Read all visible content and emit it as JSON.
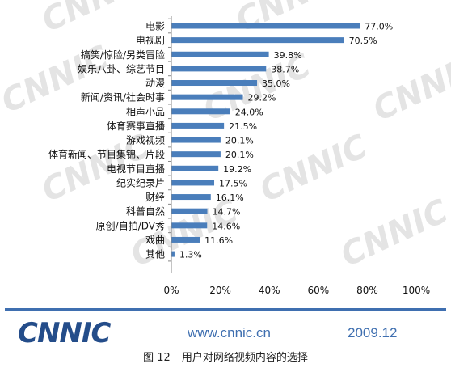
{
  "chart_data": {
    "type": "bar",
    "orientation": "horizontal",
    "categories": [
      "电影",
      "电视剧",
      "搞笑/惊险/另类冒险",
      "娱乐八卦、综艺节目",
      "动漫",
      "新闻/资讯/社会时事",
      "相声小品",
      "体育赛事直播",
      "游戏视频",
      "体育新闻、节目集锦、片段",
      "电视节目直播",
      "纪实纪录片",
      "财经",
      "科普自然",
      "原创/自拍/DV秀",
      "戏曲",
      "其他"
    ],
    "values": [
      77.0,
      70.5,
      39.8,
      38.7,
      35.0,
      29.2,
      24.0,
      21.5,
      20.1,
      20.1,
      19.2,
      17.5,
      16.1,
      14.7,
      14.6,
      11.6,
      1.3
    ],
    "value_labels": [
      "77.0%",
      "70.5%",
      "39.8%",
      "38.7%",
      "35.0%",
      "29.2%",
      "24.0%",
      "21.5%",
      "20.1%",
      "20.1%",
      "19.2%",
      "17.5%",
      "16.1%",
      "14.7%",
      "14.6%",
      "11.6%",
      "1.3%"
    ],
    "x_ticks": [
      "0%",
      "20%",
      "40%",
      "60%",
      "80%",
      "100%"
    ],
    "xlim": [
      0,
      100
    ],
    "grid": false,
    "legend": "none",
    "bar_color": "#4a7ebb",
    "watermark_text": "CNNIC"
  },
  "footer": {
    "logo_text": "CNNIC",
    "url": "www.cnnic.cn",
    "period": "2009.12",
    "figure_number": "图 12",
    "figure_title": "用户对网络视频内容的选择"
  },
  "colors": {
    "bar": "#4a7ebb",
    "rule": "#3f6fb0",
    "logo": "#244d8a",
    "watermark": "#e4e4e4"
  }
}
